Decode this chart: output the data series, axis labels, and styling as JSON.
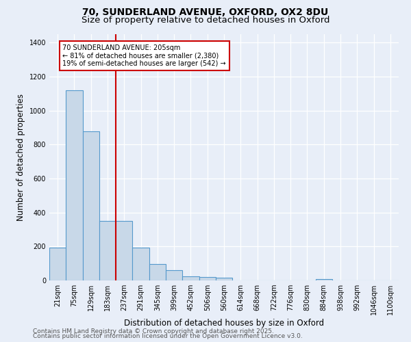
{
  "title_line1": "70, SUNDERLAND AVENUE, OXFORD, OX2 8DU",
  "title_line2": "Size of property relative to detached houses in Oxford",
  "xlabel": "Distribution of detached houses by size in Oxford",
  "ylabel": "Number of detached properties",
  "categories": [
    "21sqm",
    "75sqm",
    "129sqm",
    "183sqm",
    "237sqm",
    "291sqm",
    "345sqm",
    "399sqm",
    "452sqm",
    "506sqm",
    "560sqm",
    "614sqm",
    "668sqm",
    "722sqm",
    "776sqm",
    "830sqm",
    "884sqm",
    "938sqm",
    "992sqm",
    "1046sqm",
    "1100sqm"
  ],
  "values": [
    195,
    1120,
    880,
    350,
    350,
    195,
    95,
    60,
    25,
    20,
    15,
    0,
    0,
    0,
    0,
    0,
    10,
    0,
    0,
    0,
    0
  ],
  "bar_color": "#c8d8e8",
  "bar_edge_color": "#5599cc",
  "annotation_text": "70 SUNDERLAND AVENUE: 205sqm\n← 81% of detached houses are smaller (2,380)\n19% of semi-detached houses are larger (542) →",
  "annotation_box_color": "#ffffff",
  "annotation_box_edge_color": "#cc0000",
  "red_line_color": "#cc0000",
  "ylim": [
    0,
    1450
  ],
  "yticks": [
    0,
    200,
    400,
    600,
    800,
    1000,
    1200,
    1400
  ],
  "background_color": "#e8eef8",
  "footer_line1": "Contains HM Land Registry data © Crown copyright and database right 2025.",
  "footer_line2": "Contains public sector information licensed under the Open Government Licence v3.0.",
  "title_fontsize": 10,
  "subtitle_fontsize": 9.5,
  "axis_label_fontsize": 8.5,
  "tick_fontsize": 7,
  "footer_fontsize": 6.5
}
